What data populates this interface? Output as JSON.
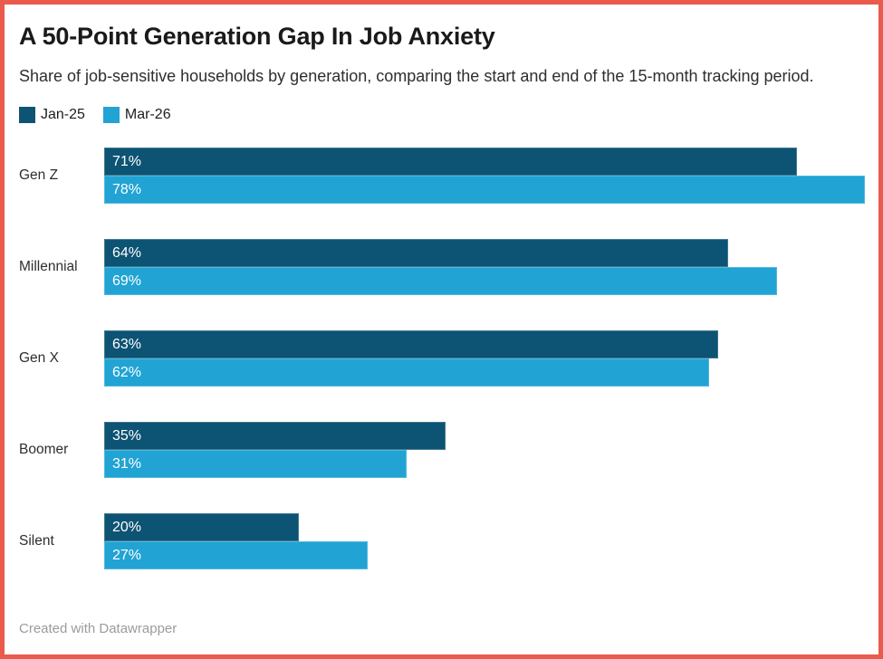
{
  "header": {
    "title": "A 50-Point Generation Gap In Job Anxiety",
    "subtitle": "Share of job-sensitive households by generation, comparing the start and end of the 15-month tracking period."
  },
  "chart_data": {
    "type": "bar",
    "orientation": "horizontal",
    "title": "A 50-Point Generation Gap In Job Anxiety",
    "subtitle": "Share of job-sensitive households by generation, comparing the start and end of the 15-month tracking period.",
    "categories": [
      "Gen Z",
      "Millennial",
      "Gen X",
      "Boomer",
      "Silent"
    ],
    "series": [
      {
        "name": "Jan-25",
        "color": "#0d5373",
        "values": [
          71,
          64,
          63,
          35,
          20
        ]
      },
      {
        "name": "Mar-26",
        "color": "#21a3d4",
        "values": [
          78,
          69,
          62,
          31,
          27
        ]
      }
    ],
    "value_suffix": "%",
    "value_labels": "inside-start",
    "xmax": 78,
    "grid": false,
    "legend_position": "top-left"
  },
  "footer": {
    "credit": "Created with Datawrapper"
  },
  "colors": {
    "frame_border": "#ea5a4d",
    "background": "#ffffff",
    "title_text": "#1a1a1a",
    "subtitle_text": "#2e2e2e",
    "category_text": "#2e2e2e",
    "value_text": "#ffffff",
    "credit_text": "#9b9b9b",
    "series_jan25": "#0d5373",
    "series_mar26": "#21a3d4"
  }
}
